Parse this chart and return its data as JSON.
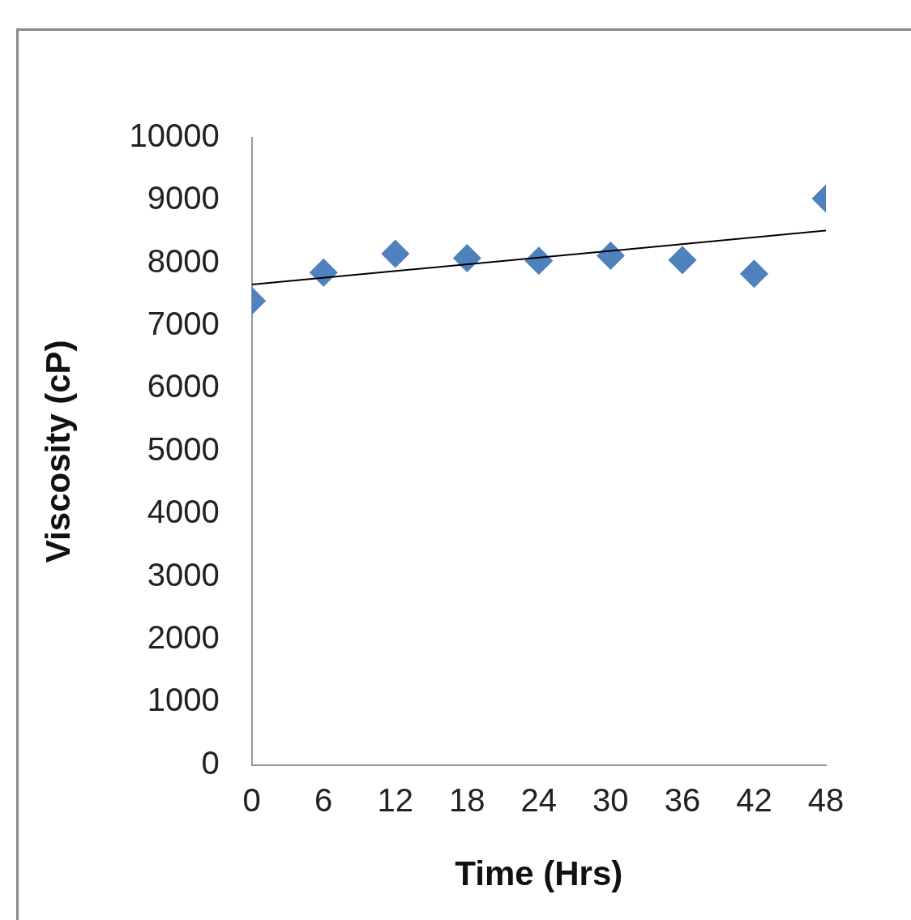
{
  "chart_data": {
    "type": "scatter",
    "xlabel": "Time (Hrs)",
    "ylabel": "Viscosity (cP)",
    "x": [
      0,
      6,
      12,
      18,
      24,
      30,
      36,
      42,
      48
    ],
    "series": [
      {
        "color": "#4f81bd",
        "values": [
          7400,
          7850,
          8150,
          8080,
          8040,
          8120,
          8050,
          7830,
          9030
        ]
      },
      {
        "type": "line",
        "color": "#000000",
        "x": [
          0,
          48
        ],
        "values": [
          7660,
          8520
        ],
        "marker": "none"
      }
    ],
    "xlim": [
      0,
      48
    ],
    "xticks": [
      0,
      6,
      12,
      18,
      24,
      30,
      36,
      42,
      48
    ],
    "ylim": [
      0,
      10000
    ],
    "yticks": [
      0,
      1000,
      2000,
      3000,
      4000,
      5000,
      6000,
      7000,
      8000,
      9000,
      10000
    ],
    "grid": false,
    "legend": false,
    "marker": "diamond"
  }
}
